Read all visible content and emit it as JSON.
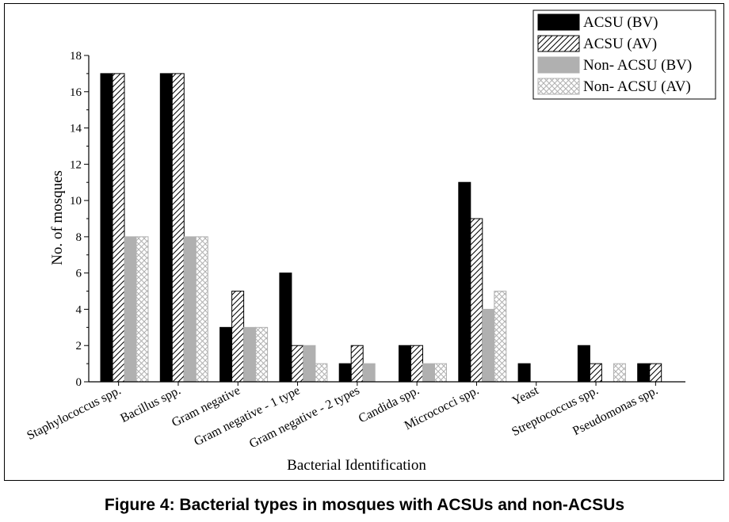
{
  "caption": "Figure 4: Bacterial types in mosques with ACSUs and non-ACSUs",
  "chart_data": {
    "type": "bar",
    "xlabel": "Bacterial Identification",
    "ylabel": "No. of mosques",
    "ylim": [
      0,
      18
    ],
    "yticks": [
      0,
      2,
      4,
      6,
      8,
      10,
      12,
      14,
      16,
      18
    ],
    "legend_position": "top-right",
    "categories": [
      "Staphylococcus spp.",
      "Bacillus spp.",
      "Gram negative",
      "Gram negative - 1 type",
      "Gram negative - 2 types",
      "Candida spp.",
      "Micrococci spp.",
      "Yeast",
      "Streptococcus spp.",
      "Pseudomonas spp."
    ],
    "series": [
      {
        "name": "ACSU (BV)",
        "fill": "solid",
        "color": "#000000",
        "values": [
          17,
          17,
          3,
          6,
          1,
          2,
          11,
          1,
          2,
          1
        ]
      },
      {
        "name": "ACSU (AV)",
        "fill": "hatch",
        "color": "#000000",
        "values": [
          17,
          17,
          5,
          2,
          2,
          2,
          9,
          0,
          1,
          1
        ]
      },
      {
        "name": "Non- ACSU (BV)",
        "fill": "solid",
        "color": "#b0b0b0",
        "values": [
          8,
          8,
          3,
          2,
          1,
          1,
          4,
          0,
          0,
          0
        ]
      },
      {
        "name": "Non- ACSU (AV)",
        "fill": "crosshatch",
        "color": "#b0b0b0",
        "values": [
          8,
          8,
          3,
          1,
          0,
          1,
          5,
          0,
          1,
          0
        ]
      }
    ]
  }
}
